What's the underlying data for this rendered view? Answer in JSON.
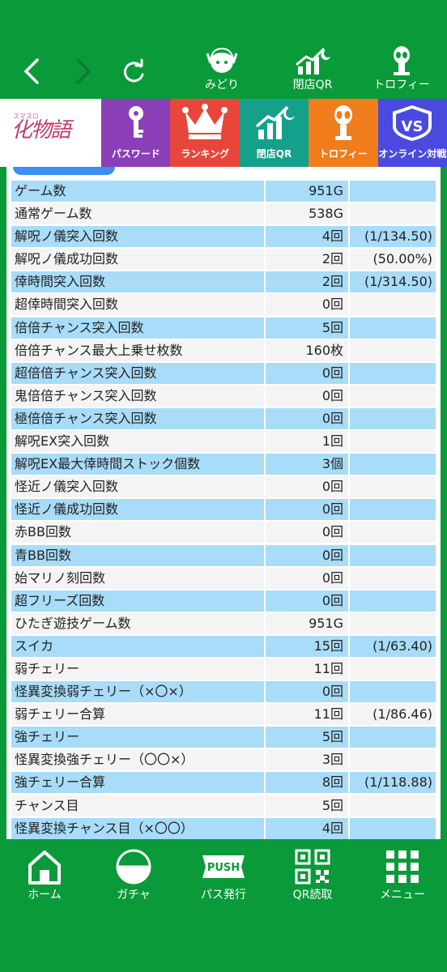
{
  "topnav": {
    "back_icon": "chevron-left-icon",
    "forward_icon": "chevron-right-icon",
    "reload_icon": "reload-icon",
    "items": [
      {
        "label": "みどり",
        "icon": "character-icon"
      },
      {
        "label": "閉店QR",
        "icon": "chart-moon-icon"
      },
      {
        "label": "トロフィー",
        "icon": "alien-trophy-icon"
      }
    ]
  },
  "tabs": {
    "logo_small": "スマスロ",
    "logo": "化物語",
    "items": [
      {
        "label": "パスワード",
        "icon": "key-icon",
        "color": "#8a3fb8"
      },
      {
        "label": "ランキング",
        "icon": "crown-icon",
        "color": "#e8463a"
      },
      {
        "label": "閉店QR",
        "icon": "chart-moon-icon",
        "color": "#14a08a"
      },
      {
        "label": "トロフィー",
        "icon": "alien-trophy-icon",
        "color": "#f07c1c"
      },
      {
        "label": "オンライン対戦",
        "icon": "vs-badge-icon",
        "color": "#4a4ae0"
      }
    ]
  },
  "stats": [
    {
      "name": "ゲーム数",
      "value": "951G",
      "extra": ""
    },
    {
      "name": "通常ゲーム数",
      "value": "538G",
      "extra": ""
    },
    {
      "name": "解呪ノ儀突入回数",
      "value": "4回",
      "extra": "(1/134.50)"
    },
    {
      "name": "解呪ノ儀成功回数",
      "value": "2回",
      "extra": "(50.00%)"
    },
    {
      "name": "倖時間突入回数",
      "value": "2回",
      "extra": "(1/314.50)"
    },
    {
      "name": "超倖時間突入回数",
      "value": "0回",
      "extra": ""
    },
    {
      "name": "倍倍チャンス突入回数",
      "value": "5回",
      "extra": ""
    },
    {
      "name": "倍倍チャンス最大上乗せ枚数",
      "value": "160枚",
      "extra": ""
    },
    {
      "name": "超倍倍チャンス突入回数",
      "value": "0回",
      "extra": ""
    },
    {
      "name": "鬼倍倍チャンス突入回数",
      "value": "0回",
      "extra": ""
    },
    {
      "name": "極倍倍チャンス突入回数",
      "value": "0回",
      "extra": ""
    },
    {
      "name": "解呪EX突入回数",
      "value": "1回",
      "extra": ""
    },
    {
      "name": "解呪EX最大倖時間ストック個数",
      "value": "3個",
      "extra": ""
    },
    {
      "name": "怪近ノ儀突入回数",
      "value": "0回",
      "extra": ""
    },
    {
      "name": "怪近ノ儀成功回数",
      "value": "0回",
      "extra": ""
    },
    {
      "name": "赤BB回数",
      "value": "0回",
      "extra": ""
    },
    {
      "name": "青BB回数",
      "value": "0回",
      "extra": ""
    },
    {
      "name": "始マリノ刻回数",
      "value": "0回",
      "extra": ""
    },
    {
      "name": "超フリーズ回数",
      "value": "0回",
      "extra": ""
    },
    {
      "name": "ひたぎ遊技ゲーム数",
      "value": "951G",
      "extra": ""
    },
    {
      "name": "スイカ",
      "value": "15回",
      "extra": "(1/63.40)"
    },
    {
      "name": "弱チェリー",
      "value": "11回",
      "extra": ""
    },
    {
      "name": "怪異変換弱チェリー（×〇×）",
      "value": "0回",
      "extra": ""
    },
    {
      "name": "弱チェリー合算",
      "value": "11回",
      "extra": "(1/86.46)"
    },
    {
      "name": "強チェリー",
      "value": "5回",
      "extra": ""
    },
    {
      "name": "怪異変換強チェリー（〇〇×）",
      "value": "3回",
      "extra": ""
    },
    {
      "name": "強チェリー合算",
      "value": "8回",
      "extra": "(1/118.88)"
    },
    {
      "name": "チャンス目",
      "value": "5回",
      "extra": ""
    },
    {
      "name": "怪異変換チャンス目（×〇〇）",
      "value": "4回",
      "extra": ""
    }
  ],
  "bottomnav": [
    {
      "label": "ホーム",
      "icon": "home-icon"
    },
    {
      "label": "ガチャ",
      "icon": "gacha-icon"
    },
    {
      "label": "パス発行",
      "icon": "push-icon",
      "badge": "PUSH"
    },
    {
      "label": "QR読取",
      "icon": "qr-icon"
    },
    {
      "label": "メニュー",
      "icon": "grid-menu-icon"
    }
  ],
  "colors": {
    "brand_green": "#0a9a3a",
    "row_blue": "#a8dcf8",
    "row_gray": "#f4f4f4"
  }
}
